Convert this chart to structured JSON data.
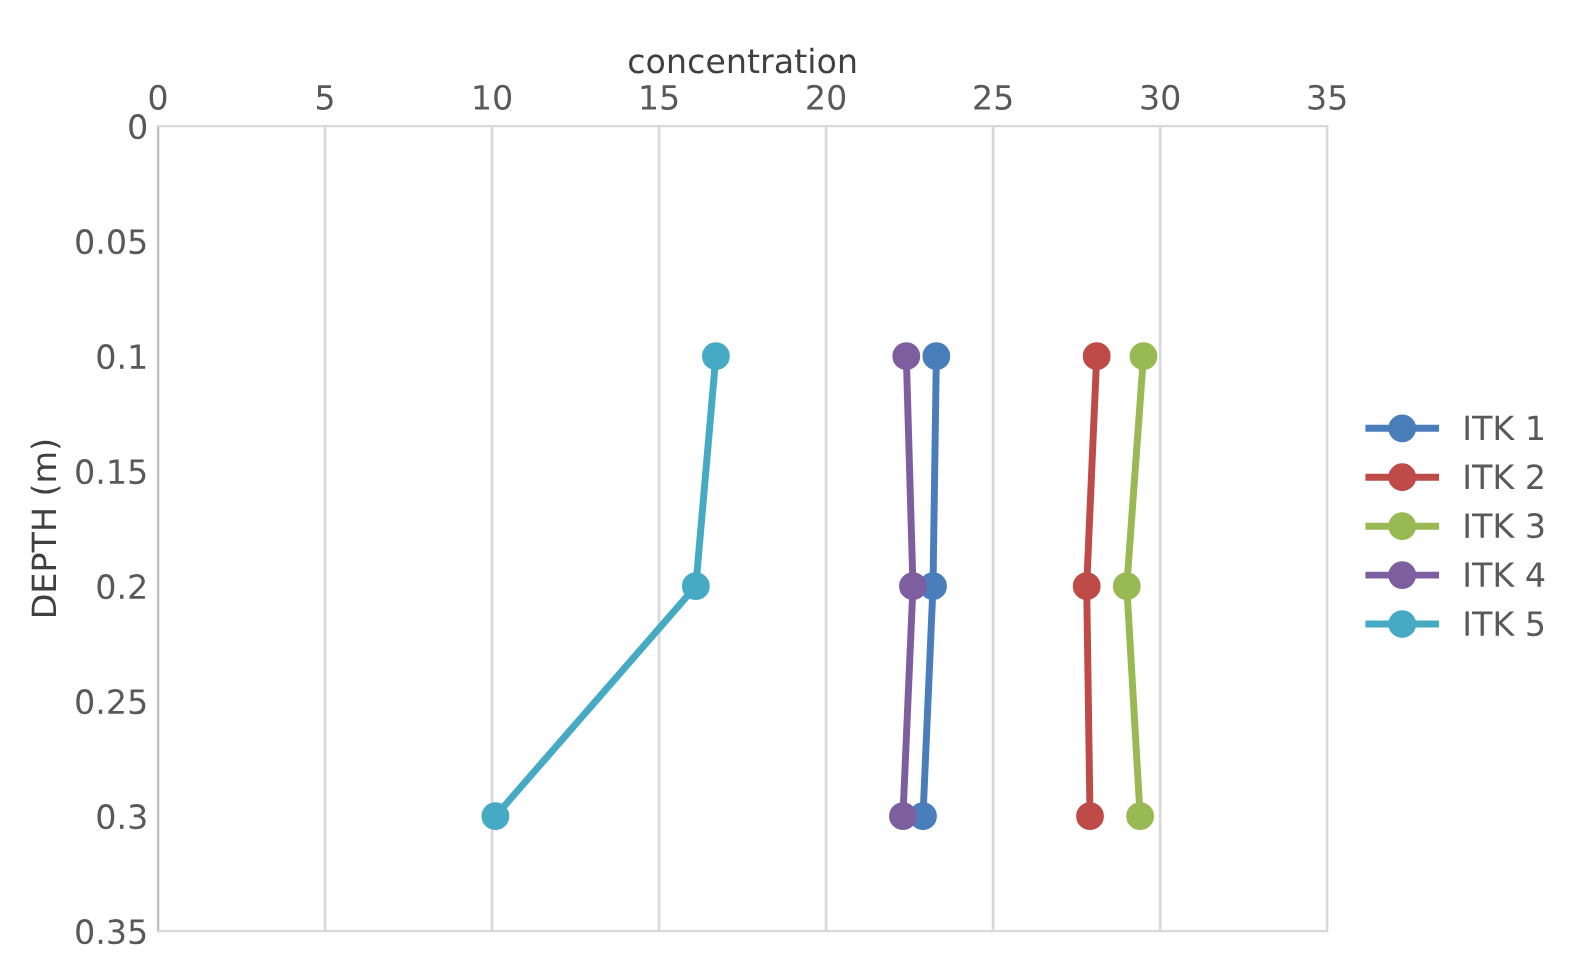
{
  "chart_data": {
    "type": "line",
    "xlabel": "concentration",
    "ylabel": "DEPTH (m)",
    "xlim": [
      0,
      35
    ],
    "xticks": [
      0,
      5,
      10,
      15,
      20,
      25,
      30,
      35
    ],
    "ylim": [
      0.35,
      0
    ],
    "yticks": [
      0,
      0.05,
      0.1,
      0.15,
      0.2,
      0.25,
      0.3,
      0.35
    ],
    "grid": "x",
    "legend": "right",
    "marker": "circle",
    "line_style": "solid",
    "series": [
      {
        "name": "ITK 1",
        "color": "#4a7ebb",
        "x": [
          23.3,
          23.2,
          22.9
        ],
        "values": [
          0.1,
          0.2,
          0.3
        ]
      },
      {
        "name": "ITK 2",
        "color": "#be4b48",
        "x": [
          28.1,
          27.8,
          27.9
        ],
        "values": [
          0.1,
          0.2,
          0.3
        ]
      },
      {
        "name": "ITK 3",
        "color": "#98b954",
        "x": [
          29.5,
          29.0,
          29.4
        ],
        "values": [
          0.1,
          0.2,
          0.3
        ]
      },
      {
        "name": "ITK 4",
        "color": "#7d5fa0",
        "x": [
          22.4,
          22.6,
          22.3
        ],
        "values": [
          0.1,
          0.2,
          0.3
        ]
      },
      {
        "name": "ITK 5",
        "color": "#46aac5",
        "x": [
          16.7,
          16.1,
          10.1
        ],
        "values": [
          0.1,
          0.2,
          0.3
        ]
      }
    ]
  }
}
